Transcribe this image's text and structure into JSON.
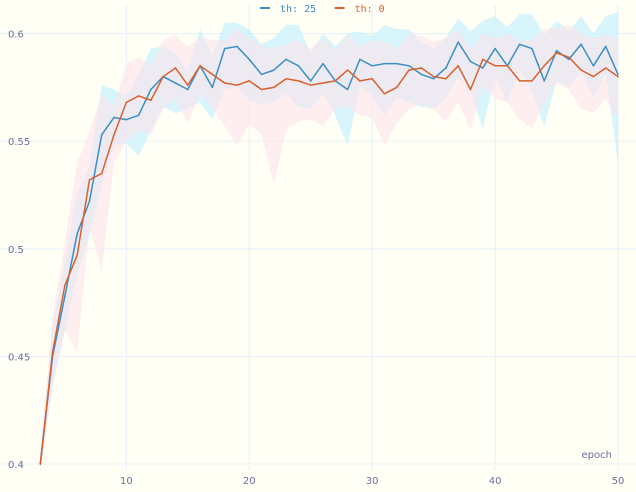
{
  "chart_data": {
    "type": "line",
    "title": "",
    "xlabel": "epoch",
    "ylabel": "",
    "xlim": [
      2,
      50
    ],
    "ylim": [
      0.4,
      0.61
    ],
    "x_ticks": [
      10,
      20,
      30,
      40,
      50
    ],
    "y_ticks": [
      0.4,
      0.45,
      0.5,
      0.55,
      0.6
    ],
    "x_tick_labels": [
      "10",
      "20",
      "30",
      "40",
      "50"
    ],
    "y_tick_labels": [
      "0.4",
      "0.45",
      "0.5",
      "0.55",
      "0.6"
    ],
    "grid": true,
    "legend_position": "top-center",
    "x": [
      3,
      4,
      5,
      6,
      7,
      8,
      9,
      10,
      11,
      12,
      13,
      14,
      15,
      16,
      17,
      18,
      19,
      20,
      21,
      22,
      23,
      24,
      25,
      26,
      27,
      28,
      29,
      30,
      31,
      32,
      33,
      34,
      35,
      36,
      37,
      38,
      39,
      40,
      41,
      42,
      43,
      44,
      45,
      46,
      47,
      48,
      49,
      50
    ],
    "series": [
      {
        "name": "th: 25",
        "color": "#3a8fc4",
        "band_color": "#c9f1fb",
        "values": [
          0.4,
          0.45,
          0.478,
          0.507,
          0.522,
          0.553,
          0.561,
          0.56,
          0.562,
          0.574,
          0.58,
          0.577,
          0.574,
          0.585,
          0.575,
          0.593,
          0.594,
          0.588,
          0.581,
          0.583,
          0.588,
          0.585,
          0.578,
          0.586,
          0.578,
          0.574,
          0.588,
          0.585,
          0.586,
          0.586,
          0.585,
          0.581,
          0.579,
          0.584,
          0.596,
          0.587,
          0.584,
          0.593,
          0.585,
          0.595,
          0.593,
          0.578,
          0.592,
          0.588,
          0.595,
          0.585,
          0.594,
          0.581
        ],
        "lower": [
          0.396,
          0.436,
          0.462,
          0.488,
          0.506,
          0.53,
          0.548,
          0.549,
          0.543,
          0.555,
          0.566,
          0.563,
          0.565,
          0.568,
          0.56,
          0.574,
          0.575,
          0.569,
          0.567,
          0.568,
          0.572,
          0.566,
          0.565,
          0.572,
          0.562,
          0.548,
          0.575,
          0.571,
          0.562,
          0.57,
          0.568,
          0.566,
          0.565,
          0.57,
          0.58,
          0.573,
          0.556,
          0.58,
          0.568,
          0.583,
          0.573,
          0.557,
          0.578,
          0.575,
          0.582,
          0.57,
          0.581,
          0.54
        ],
        "upper": [
          0.405,
          0.464,
          0.494,
          0.526,
          0.538,
          0.576,
          0.574,
          0.571,
          0.581,
          0.593,
          0.594,
          0.591,
          0.583,
          0.602,
          0.59,
          0.605,
          0.605,
          0.602,
          0.595,
          0.598,
          0.604,
          0.604,
          0.591,
          0.6,
          0.594,
          0.6,
          0.601,
          0.599,
          0.604,
          0.602,
          0.602,
          0.596,
          0.593,
          0.598,
          0.607,
          0.601,
          0.606,
          0.608,
          0.603,
          0.609,
          0.609,
          0.599,
          0.606,
          0.601,
          0.608,
          0.6,
          0.608,
          0.61
        ]
      },
      {
        "name": "th: 0",
        "color": "#d8622e",
        "band_color": "#fde3ec",
        "values": [
          0.4,
          0.452,
          0.483,
          0.497,
          0.532,
          0.535,
          0.553,
          0.568,
          0.571,
          0.569,
          0.58,
          0.584,
          0.576,
          0.585,
          0.581,
          0.577,
          0.576,
          0.578,
          0.574,
          0.575,
          0.579,
          0.578,
          0.576,
          0.577,
          0.578,
          0.583,
          0.578,
          0.579,
          0.572,
          0.575,
          0.583,
          0.584,
          0.58,
          0.579,
          0.585,
          0.574,
          0.588,
          0.585,
          0.585,
          0.578,
          0.578,
          0.585,
          0.591,
          0.589,
          0.583,
          0.58,
          0.584,
          0.58
        ],
        "lower": [
          0.396,
          0.436,
          0.462,
          0.452,
          0.51,
          0.49,
          0.54,
          0.55,
          0.555,
          0.553,
          0.565,
          0.57,
          0.558,
          0.572,
          0.565,
          0.557,
          0.548,
          0.558,
          0.553,
          0.53,
          0.555,
          0.559,
          0.56,
          0.557,
          0.565,
          0.566,
          0.562,
          0.561,
          0.548,
          0.558,
          0.565,
          0.567,
          0.565,
          0.559,
          0.568,
          0.555,
          0.575,
          0.57,
          0.568,
          0.56,
          0.556,
          0.567,
          0.577,
          0.574,
          0.565,
          0.563,
          0.57,
          0.56
        ],
        "upper": [
          0.404,
          0.468,
          0.503,
          0.54,
          0.554,
          0.572,
          0.566,
          0.586,
          0.589,
          0.585,
          0.597,
          0.599,
          0.594,
          0.598,
          0.597,
          0.597,
          0.602,
          0.598,
          0.594,
          0.593,
          0.595,
          0.597,
          0.593,
          0.598,
          0.592,
          0.6,
          0.594,
          0.597,
          0.596,
          0.593,
          0.6,
          0.599,
          0.596,
          0.598,
          0.602,
          0.593,
          0.6,
          0.598,
          0.6,
          0.596,
          0.597,
          0.602,
          0.603,
          0.604,
          0.6,
          0.598,
          0.599,
          0.598
        ]
      }
    ]
  }
}
